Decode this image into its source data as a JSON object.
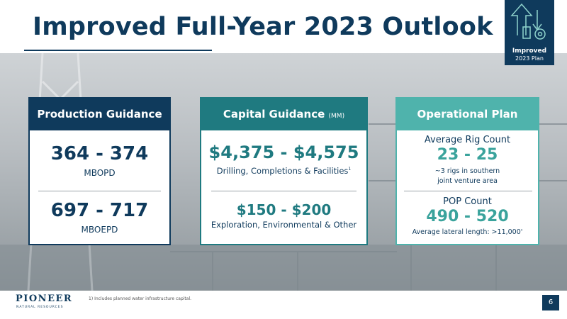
{
  "header": {
    "title": "Improved Full-Year 2023 Outlook",
    "badge": {
      "line1": "Improved",
      "line2": "2023 Plan"
    }
  },
  "cards": [
    {
      "title": "Production Guidance",
      "items": [
        {
          "value": "364 - 374",
          "label": "MBOPD"
        },
        {
          "value": "697 - 717",
          "label": "MBOEPD"
        }
      ]
    },
    {
      "title": "Capital Guidance",
      "unit": "(MM)",
      "items": [
        {
          "value": "$4,375 - $4,575",
          "label": "Drilling, Completions & Facilities",
          "marker": "1"
        },
        {
          "value": "$150 - $200",
          "label": "Exploration, Environmental & Other"
        }
      ]
    },
    {
      "title": "Operational Plan",
      "items": [
        {
          "heading": "Average Rig Count",
          "value": "23 - 25",
          "note1": "~3 rigs in southern",
          "note2": "joint venture area"
        },
        {
          "heading": "POP Count",
          "value": "490 - 520",
          "note1": "Average lateral length: >11,000'"
        }
      ]
    }
  ],
  "footer": {
    "logo": "PIONEER",
    "logo_sub": "NATURAL RESOURCES",
    "footnote": "1) Includes planned water infrastructure capital.",
    "page": "6"
  }
}
